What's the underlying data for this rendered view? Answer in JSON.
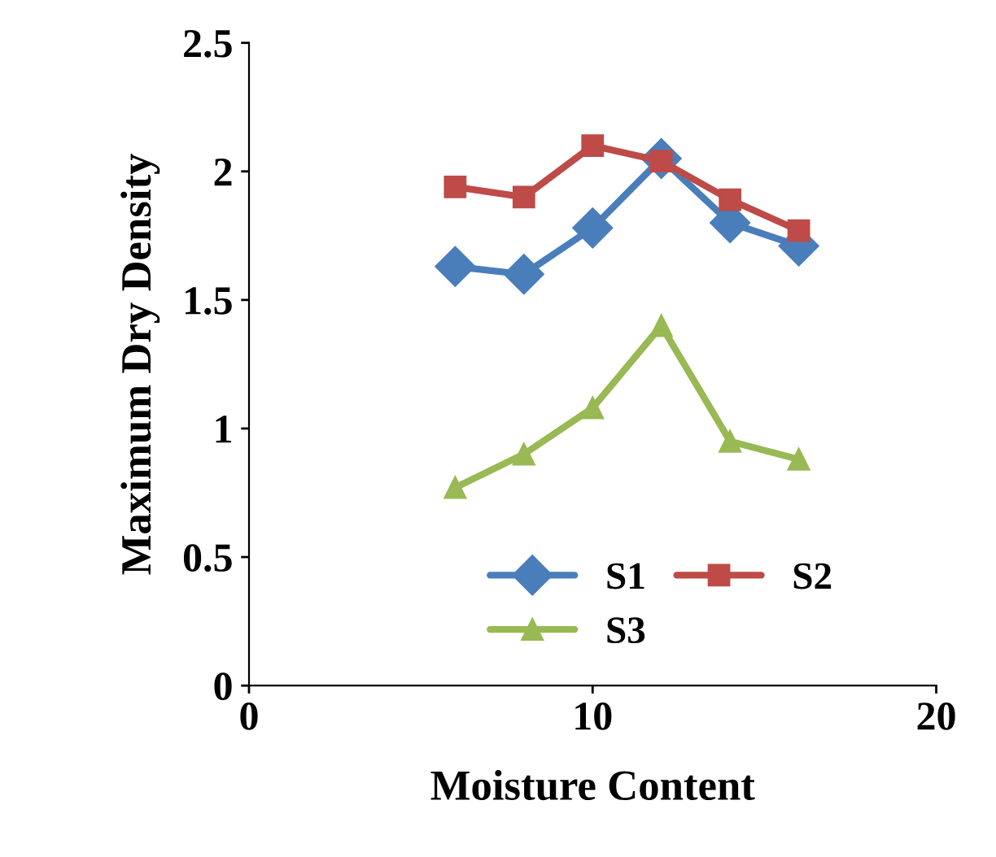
{
  "chart_data": {
    "type": "line",
    "xlabel": "Moisture Content",
    "ylabel": "Maximum Dry Density",
    "xlim": [
      0,
      20
    ],
    "xticks": [
      0,
      10,
      20
    ],
    "ylim": [
      0,
      2.5
    ],
    "yticks": [
      0,
      0.5,
      1,
      1.5,
      2,
      2.5
    ],
    "grid": false,
    "legend": "bottom",
    "line_style": "solid",
    "series": [
      {
        "name": "S1",
        "color": "#4a7ebb",
        "marker": "diamond",
        "x": [
          6,
          8,
          10,
          12,
          14,
          16
        ],
        "values": [
          1.63,
          1.6,
          1.78,
          2.05,
          1.8,
          1.71
        ]
      },
      {
        "name": "S2",
        "color": "#be4b48",
        "marker": "square",
        "x": [
          6,
          8,
          10,
          12,
          14,
          16
        ],
        "values": [
          1.94,
          1.9,
          2.1,
          2.04,
          1.89,
          1.77
        ]
      },
      {
        "name": "S3",
        "color": "#98b954",
        "marker": "triangle",
        "x": [
          6,
          8,
          10,
          12,
          14,
          16
        ],
        "values": [
          0.77,
          0.9,
          1.08,
          1.4,
          0.95,
          0.88
        ]
      }
    ]
  }
}
